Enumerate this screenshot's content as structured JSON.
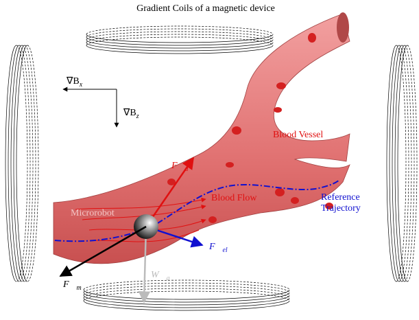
{
  "title": "Gradient Coils of a magnetic device",
  "field_labels": [
    {
      "symbol": "∇B",
      "subscript": "x"
    },
    {
      "symbol": "∇B",
      "subscript": "z"
    }
  ],
  "labels": {
    "vessel": "Blood Vessel",
    "flow": "Blood Flow",
    "trajectory": "Reference Trajectory",
    "robot": "Microrobot"
  },
  "forces": [
    {
      "symbol": "F⃗",
      "subscript": "d"
    },
    {
      "symbol": "F⃗",
      "subscript": "el"
    },
    {
      "symbol": "F⃗",
      "subscript": "m"
    },
    {
      "symbol": "W⃗",
      "subscript": "a"
    }
  ]
}
